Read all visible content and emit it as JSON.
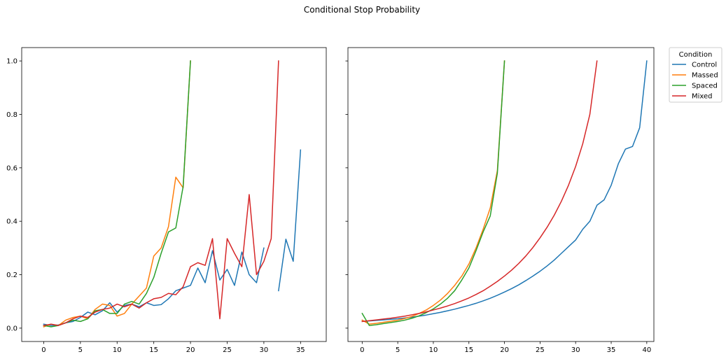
{
  "figure": {
    "title": "Conditional Stop Probability"
  },
  "legend": {
    "title": "Condition",
    "placement": "outside upper right",
    "entries": [
      {
        "label": "Control",
        "color": "#1f77b4"
      },
      {
        "label": "Massed",
        "color": "#ff7f0e"
      },
      {
        "label": "Spaced",
        "color": "#2ca02c"
      },
      {
        "label": "Mixed",
        "color": "#d62728"
      }
    ]
  },
  "chart_data": [
    {
      "type": "line",
      "title": "",
      "xlabel": "",
      "ylabel": "",
      "xlim": [
        -3,
        38.5
      ],
      "ylim": [
        -0.05,
        1.05
      ],
      "xticks": [
        0,
        5,
        10,
        15,
        20,
        25,
        30,
        35
      ],
      "yticks": [
        0.0,
        0.2,
        0.4,
        0.6,
        0.8,
        1.0
      ],
      "ytick_labels": [
        "0.0",
        "0.2",
        "0.4",
        "0.6",
        "0.8",
        "1.0"
      ],
      "grid": false,
      "series": [
        {
          "name": "Control",
          "color": "#1f77b4",
          "segments": [
            [
              [
                0,
                0.015
              ],
              [
                1,
                0.01
              ],
              [
                2,
                0.012
              ],
              [
                3,
                0.02
              ],
              [
                4,
                0.025
              ],
              [
                5,
                0.04
              ],
              [
                6,
                0.06
              ],
              [
                7,
                0.05
              ],
              [
                8,
                0.065
              ],
              [
                9,
                0.095
              ],
              [
                10,
                0.06
              ],
              [
                11,
                0.085
              ],
              [
                12,
                0.09
              ],
              [
                13,
                0.08
              ],
              [
                14,
                0.095
              ],
              [
                15,
                0.085
              ],
              [
                16,
                0.088
              ],
              [
                17,
                0.11
              ],
              [
                18,
                0.14
              ],
              [
                19,
                0.15
              ],
              [
                20,
                0.16
              ],
              [
                21,
                0.225
              ],
              [
                22,
                0.17
              ],
              [
                23,
                0.29
              ],
              [
                24,
                0.18
              ],
              [
                25,
                0.22
              ],
              [
                26,
                0.16
              ],
              [
                27,
                0.285
              ],
              [
                28,
                0.2
              ],
              [
                29,
                0.17
              ],
              [
                30,
                0.3
              ]
            ],
            [
              [
                32,
                0.14
              ],
              [
                33,
                0.333
              ],
              [
                34,
                0.25
              ],
              [
                35,
                0.667
              ]
            ]
          ]
        },
        {
          "name": "Massed",
          "color": "#ff7f0e",
          "segments": [
            [
              [
                0,
                0.005
              ],
              [
                1,
                0.015
              ],
              [
                2,
                0.01
              ],
              [
                3,
                0.03
              ],
              [
                4,
                0.04
              ],
              [
                5,
                0.045
              ],
              [
                6,
                0.035
              ],
              [
                7,
                0.07
              ],
              [
                8,
                0.09
              ],
              [
                9,
                0.085
              ],
              [
                10,
                0.045
              ],
              [
                11,
                0.055
              ],
              [
                12,
                0.09
              ],
              [
                13,
                0.12
              ],
              [
                14,
                0.15
              ],
              [
                15,
                0.27
              ],
              [
                16,
                0.3
              ],
              [
                17,
                0.38
              ],
              [
                18,
                0.565
              ],
              [
                19,
                0.525
              ],
              [
                20,
                1.0
              ]
            ]
          ]
        },
        {
          "name": "Spaced",
          "color": "#2ca02c",
          "segments": [
            [
              [
                0,
                0.01
              ],
              [
                1,
                0.005
              ],
              [
                2,
                0.01
              ],
              [
                3,
                0.02
              ],
              [
                4,
                0.03
              ],
              [
                5,
                0.025
              ],
              [
                6,
                0.035
              ],
              [
                7,
                0.065
              ],
              [
                8,
                0.07
              ],
              [
                9,
                0.055
              ],
              [
                10,
                0.055
              ],
              [
                11,
                0.09
              ],
              [
                12,
                0.1
              ],
              [
                13,
                0.09
              ],
              [
                14,
                0.13
              ],
              [
                15,
                0.19
              ],
              [
                16,
                0.28
              ],
              [
                17,
                0.36
              ],
              [
                18,
                0.375
              ],
              [
                19,
                0.53
              ],
              [
                20,
                1.0
              ]
            ]
          ]
        },
        {
          "name": "Mixed",
          "color": "#d62728",
          "segments": [
            [
              [
                0,
                0.01
              ],
              [
                1,
                0.015
              ],
              [
                2,
                0.01
              ],
              [
                3,
                0.02
              ],
              [
                4,
                0.035
              ],
              [
                5,
                0.045
              ],
              [
                6,
                0.04
              ],
              [
                7,
                0.06
              ],
              [
                8,
                0.07
              ],
              [
                9,
                0.075
              ],
              [
                10,
                0.09
              ],
              [
                11,
                0.08
              ],
              [
                12,
                0.09
              ],
              [
                13,
                0.075
              ],
              [
                14,
                0.095
              ],
              [
                15,
                0.11
              ],
              [
                16,
                0.115
              ],
              [
                17,
                0.13
              ],
              [
                18,
                0.125
              ],
              [
                19,
                0.155
              ],
              [
                20,
                0.23
              ],
              [
                21,
                0.245
              ],
              [
                22,
                0.235
              ],
              [
                23,
                0.335
              ],
              [
                24,
                0.035
              ],
              [
                25,
                0.335
              ],
              [
                26,
                0.28
              ],
              [
                27,
                0.23
              ],
              [
                28,
                0.5
              ],
              [
                29,
                0.2
              ],
              [
                30,
                0.25
              ],
              [
                31,
                0.335
              ],
              [
                32,
                1.0
              ]
            ]
          ]
        }
      ]
    },
    {
      "type": "line",
      "title": "",
      "xlabel": "",
      "ylabel": "",
      "xlim": [
        -2,
        41
      ],
      "ylim": [
        -0.05,
        1.05
      ],
      "xticks": [
        0,
        5,
        10,
        15,
        20,
        25,
        30,
        35,
        40
      ],
      "yticks": [
        0.0,
        0.2,
        0.4,
        0.6,
        0.8,
        1.0
      ],
      "ytick_labels": [
        "",
        "",
        "",
        "",
        "",
        ""
      ],
      "grid": false,
      "series": [
        {
          "name": "Control",
          "color": "#1f77b4",
          "segments": [
            [
              [
                0,
                0.025
              ],
              [
                1,
                0.027
              ],
              [
                2,
                0.029
              ],
              [
                3,
                0.031
              ],
              [
                4,
                0.033
              ],
              [
                5,
                0.035
              ],
              [
                6,
                0.038
              ],
              [
                7,
                0.041
              ],
              [
                8,
                0.045
              ],
              [
                9,
                0.049
              ],
              [
                10,
                0.054
              ],
              [
                11,
                0.059
              ],
              [
                12,
                0.065
              ],
              [
                13,
                0.071
              ],
              [
                14,
                0.078
              ],
              [
                15,
                0.085
              ],
              [
                16,
                0.093
              ],
              [
                17,
                0.102
              ],
              [
                18,
                0.112
              ],
              [
                19,
                0.123
              ],
              [
                20,
                0.135
              ],
              [
                21,
                0.148
              ],
              [
                22,
                0.162
              ],
              [
                23,
                0.178
              ],
              [
                24,
                0.195
              ],
              [
                25,
                0.213
              ],
              [
                26,
                0.233
              ],
              [
                27,
                0.255
              ],
              [
                28,
                0.28
              ],
              [
                29,
                0.305
              ],
              [
                30,
                0.33
              ],
              [
                31,
                0.37
              ],
              [
                32,
                0.4
              ],
              [
                33,
                0.46
              ],
              [
                34,
                0.48
              ],
              [
                35,
                0.535
              ],
              [
                36,
                0.615
              ],
              [
                37,
                0.67
              ],
              [
                38,
                0.68
              ],
              [
                39,
                0.75
              ],
              [
                40,
                1.0
              ]
            ]
          ]
        },
        {
          "name": "Massed",
          "color": "#ff7f0e",
          "segments": [
            [
              [
                0,
                0.03
              ],
              [
                1,
                0.015
              ],
              [
                2,
                0.018
              ],
              [
                3,
                0.022
              ],
              [
                4,
                0.026
              ],
              [
                5,
                0.03
              ],
              [
                6,
                0.036
              ],
              [
                7,
                0.044
              ],
              [
                8,
                0.055
              ],
              [
                9,
                0.068
              ],
              [
                10,
                0.085
              ],
              [
                11,
                0.105
              ],
              [
                12,
                0.13
              ],
              [
                13,
                0.16
              ],
              [
                14,
                0.195
              ],
              [
                15,
                0.24
              ],
              [
                16,
                0.3
              ],
              [
                17,
                0.37
              ],
              [
                18,
                0.45
              ],
              [
                19,
                0.59
              ],
              [
                20,
                1.0
              ]
            ]
          ]
        },
        {
          "name": "Spaced",
          "color": "#2ca02c",
          "segments": [
            [
              [
                0,
                0.055
              ],
              [
                1,
                0.01
              ],
              [
                2,
                0.013
              ],
              [
                3,
                0.017
              ],
              [
                4,
                0.021
              ],
              [
                5,
                0.025
              ],
              [
                6,
                0.03
              ],
              [
                7,
                0.037
              ],
              [
                8,
                0.046
              ],
              [
                9,
                0.058
              ],
              [
                10,
                0.072
              ],
              [
                11,
                0.09
              ],
              [
                12,
                0.112
              ],
              [
                13,
                0.14
              ],
              [
                14,
                0.18
              ],
              [
                15,
                0.225
              ],
              [
                16,
                0.29
              ],
              [
                17,
                0.36
              ],
              [
                18,
                0.42
              ],
              [
                19,
                0.58
              ],
              [
                20,
                1.0
              ]
            ]
          ]
        },
        {
          "name": "Mixed",
          "color": "#d62728",
          "segments": [
            [
              [
                0,
                0.025
              ],
              [
                1,
                0.028
              ],
              [
                2,
                0.031
              ],
              [
                3,
                0.034
              ],
              [
                4,
                0.037
              ],
              [
                5,
                0.041
              ],
              [
                6,
                0.045
              ],
              [
                7,
                0.05
              ],
              [
                8,
                0.055
              ],
              [
                9,
                0.061
              ],
              [
                10,
                0.068
              ],
              [
                11,
                0.075
              ],
              [
                12,
                0.083
              ],
              [
                13,
                0.092
              ],
              [
                14,
                0.102
              ],
              [
                15,
                0.113
              ],
              [
                16,
                0.126
              ],
              [
                17,
                0.14
              ],
              [
                18,
                0.157
              ],
              [
                19,
                0.175
              ],
              [
                20,
                0.195
              ],
              [
                21,
                0.217
              ],
              [
                22,
                0.242
              ],
              [
                23,
                0.27
              ],
              [
                24,
                0.302
              ],
              [
                25,
                0.338
              ],
              [
                26,
                0.378
              ],
              [
                27,
                0.423
              ],
              [
                28,
                0.475
              ],
              [
                29,
                0.535
              ],
              [
                30,
                0.605
              ],
              [
                31,
                0.69
              ],
              [
                32,
                0.8
              ],
              [
                33,
                1.0
              ]
            ]
          ]
        }
      ]
    }
  ]
}
